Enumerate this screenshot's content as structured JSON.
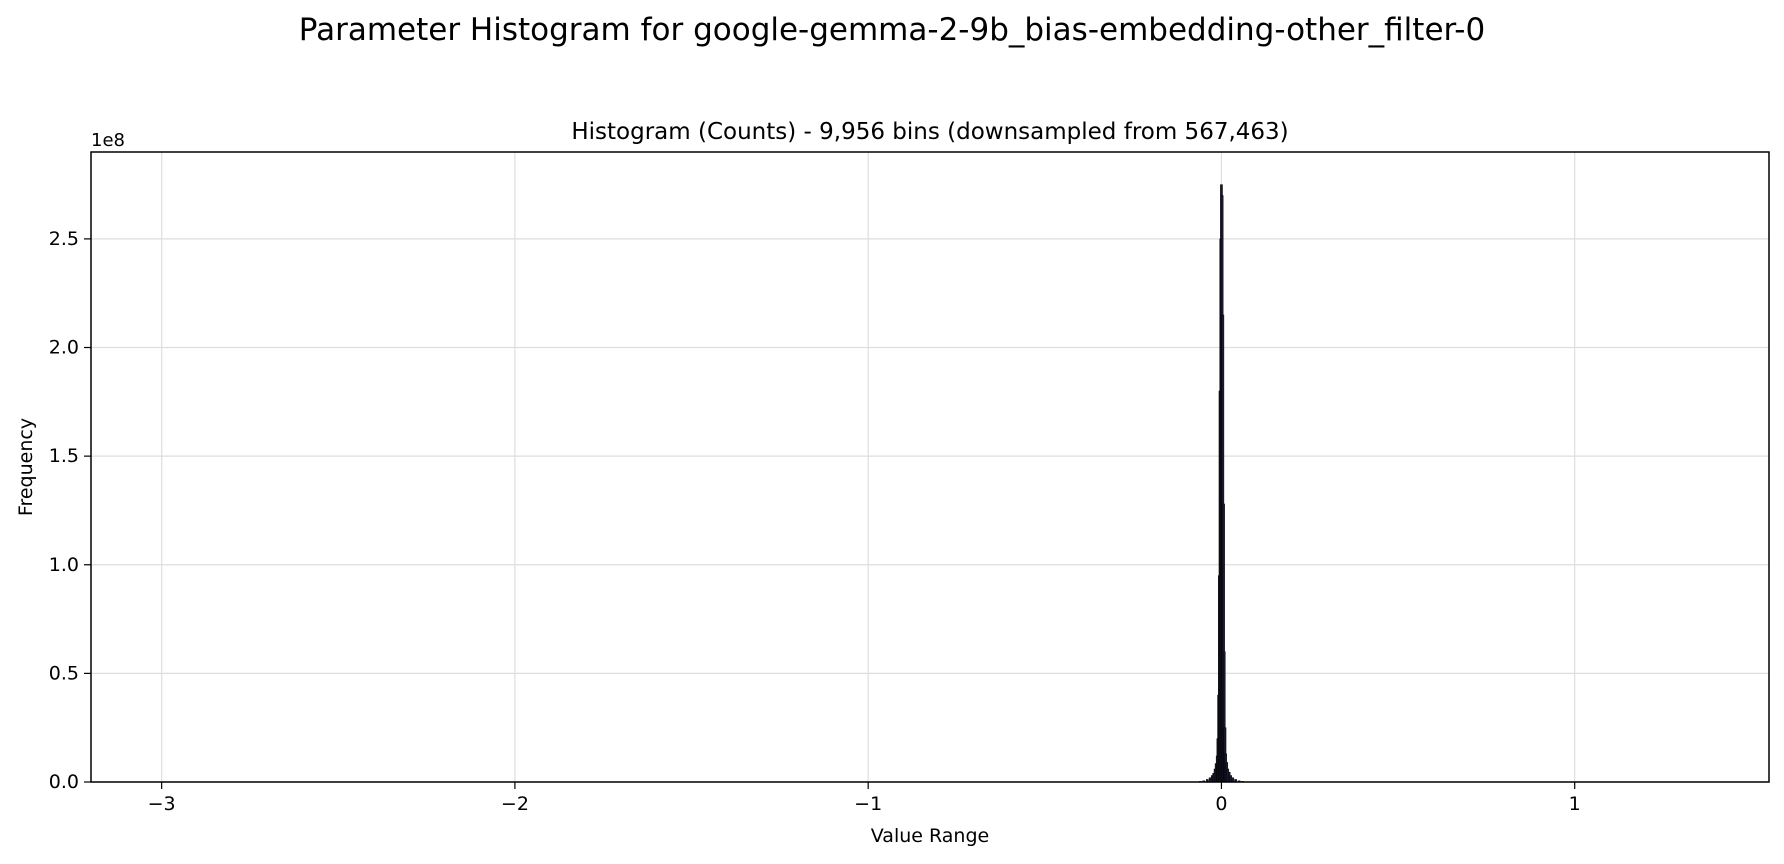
{
  "suptitle": "Parameter Histogram for google-gemma-2-9b_bias-embedding-other_filter-0",
  "chart_data": {
    "type": "bar",
    "title": "Histogram (Counts) - 9,956 bins (downsampled from 567,463)",
    "xlabel": "Value Range",
    "ylabel": "Frequency",
    "y_offset_label": "1e8",
    "xlim": [
      -3.2,
      1.55
    ],
    "ylim": [
      0,
      2.9
    ],
    "y_unit_multiplier": 100000000,
    "grid": true,
    "bar_color": "#1a1a2e",
    "x_ticks": [
      {
        "value": -3,
        "label": "−3"
      },
      {
        "value": -2,
        "label": "−2"
      },
      {
        "value": -1,
        "label": "−1"
      },
      {
        "value": 0,
        "label": "0"
      },
      {
        "value": 1,
        "label": "1"
      }
    ],
    "y_ticks": [
      {
        "value": 0.0,
        "label": "0.0"
      },
      {
        "value": 0.5,
        "label": "0.5"
      },
      {
        "value": 1.0,
        "label": "1.0"
      },
      {
        "value": 1.5,
        "label": "1.5"
      },
      {
        "value": 2.0,
        "label": "2.0"
      },
      {
        "value": 2.5,
        "label": "2.5"
      }
    ],
    "bins": [
      {
        "x": -0.06,
        "y": 0.003
      },
      {
        "x": -0.05,
        "y": 0.006
      },
      {
        "x": -0.04,
        "y": 0.012
      },
      {
        "x": -0.032,
        "y": 0.02
      },
      {
        "x": -0.026,
        "y": 0.03
      },
      {
        "x": -0.022,
        "y": 0.04
      },
      {
        "x": -0.018,
        "y": 0.06
      },
      {
        "x": -0.015,
        "y": 0.085
      },
      {
        "x": -0.012,
        "y": 0.12
      },
      {
        "x": -0.01,
        "y": 0.2
      },
      {
        "x": -0.008,
        "y": 0.4
      },
      {
        "x": -0.006,
        "y": 0.95
      },
      {
        "x": -0.004,
        "y": 1.8
      },
      {
        "x": -0.002,
        "y": 2.5
      },
      {
        "x": 0.0,
        "y": 2.75
      },
      {
        "x": 0.002,
        "y": 2.7
      },
      {
        "x": 0.004,
        "y": 2.15
      },
      {
        "x": 0.006,
        "y": 1.28
      },
      {
        "x": 0.008,
        "y": 0.6
      },
      {
        "x": 0.01,
        "y": 0.25
      },
      {
        "x": 0.012,
        "y": 0.13
      },
      {
        "x": 0.015,
        "y": 0.09
      },
      {
        "x": 0.018,
        "y": 0.06
      },
      {
        "x": 0.022,
        "y": 0.045
      },
      {
        "x": 0.026,
        "y": 0.03
      },
      {
        "x": 0.032,
        "y": 0.02
      },
      {
        "x": 0.04,
        "y": 0.012
      },
      {
        "x": 0.05,
        "y": 0.006
      },
      {
        "x": 0.06,
        "y": 0.003
      }
    ]
  }
}
